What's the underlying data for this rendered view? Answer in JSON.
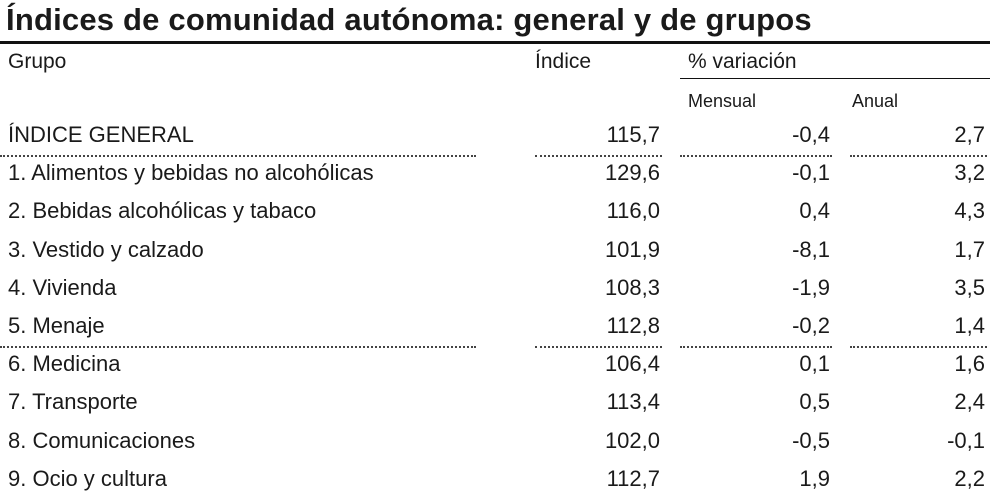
{
  "title": "Índices de comunidad autónoma: general y de grupos",
  "table": {
    "header": [
      "Grupo",
      "Índice",
      "% variación"
    ],
    "subheader": [
      "Mensual",
      "Anual"
    ],
    "rows": [
      [
        "ÍNDICE GENERAL",
        "115,7",
        "-0,4",
        "2,7"
      ],
      [
        "1. Alimentos y bebidas no alcohólicas",
        "129,6",
        "-0,1",
        "3,2"
      ],
      [
        "2. Bebidas alcohólicas y tabaco",
        "116,0",
        "0,4",
        "4,3"
      ],
      [
        "3. Vestido y calzado",
        "101,9",
        "-8,1",
        "1,7"
      ],
      [
        "4. Vivienda",
        "108,3",
        "-1,9",
        "3,5"
      ],
      [
        "5. Menaje",
        "112,8",
        "-0,2",
        "1,4"
      ],
      [
        "6. Medicina",
        "106,4",
        "0,1",
        "1,6"
      ],
      [
        "7. Transporte",
        "113,4",
        "0,5",
        "2,4"
      ],
      [
        "8. Comunicaciones",
        "102,0",
        "-0,5",
        "-0,1"
      ],
      [
        "9. Ocio y cultura",
        "112,7",
        "1,9",
        "2,2"
      ]
    ]
  }
}
